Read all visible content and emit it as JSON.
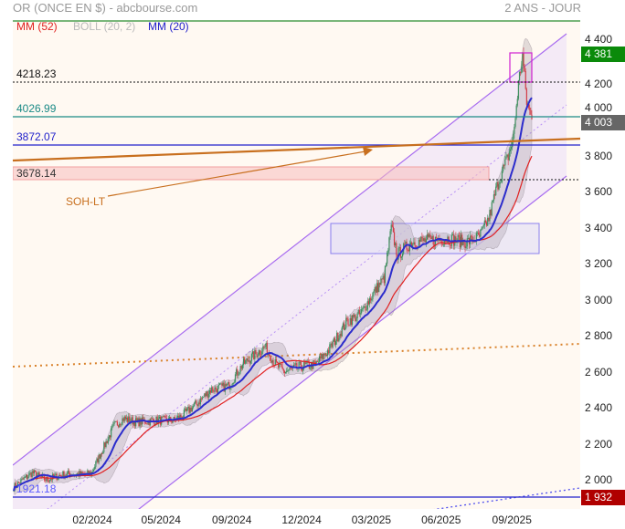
{
  "header": {
    "title": "OR (ONCE EN $) - abcbourse.com",
    "period": "2 ANS - JOUR"
  },
  "legend": [
    {
      "label": "MM (52)",
      "color": "#e02020"
    },
    {
      "label": "BOLL (20, 2)",
      "color": "#bbbbbb"
    },
    {
      "label": "MM (20)",
      "color": "#2222cc"
    }
  ],
  "levels": {
    "l4218": "4218.23",
    "l4027": "4026.99",
    "l3872": "3872.07",
    "l3678": "3678.14",
    "l1921": "1921.18"
  },
  "annotation": {
    "trendline_label": "SOH-LT"
  },
  "badges": {
    "high": "4 381",
    "last": "4 003",
    "low": "1 932"
  },
  "colors": {
    "up": "#3f8f5f",
    "down": "#d23c46",
    "high_badge": "#0a8a0a",
    "last_badge": "#666666",
    "low_badge": "#b00000"
  },
  "chart_data": {
    "type": "candlestick",
    "title": "OR (ONCE EN $)",
    "ylabel": "USD",
    "ylim": [
      1900,
      4450
    ],
    "yticks": [
      "2 000",
      "2 200",
      "2 400",
      "2 600",
      "2 800",
      "3 000",
      "3 200",
      "3 400",
      "3 600",
      "3 800",
      "4 000",
      "4 200",
      "4 400"
    ],
    "ytick_values": [
      2000,
      2200,
      2400,
      2600,
      2800,
      3000,
      3200,
      3400,
      3600,
      3800,
      4000,
      4200,
      4400
    ],
    "xticks": [
      "02/2024",
      "05/2024",
      "09/2024",
      "12/2024",
      "03/2025",
      "06/2025",
      "09/2025"
    ],
    "xtick_day_index": [
      76,
      143,
      212,
      280,
      348,
      416,
      485
    ],
    "total_days": 505,
    "close_keypoints": [
      [
        0,
        1960
      ],
      [
        18,
        2040
      ],
      [
        31,
        2000
      ],
      [
        49,
        2030
      ],
      [
        71,
        2030
      ],
      [
        76,
        2040
      ],
      [
        85,
        2150
      ],
      [
        98,
        2300
      ],
      [
        107,
        2340
      ],
      [
        120,
        2320
      ],
      [
        138,
        2330
      ],
      [
        156,
        2330
      ],
      [
        165,
        2360
      ],
      [
        178,
        2420
      ],
      [
        192,
        2500
      ],
      [
        209,
        2520
      ],
      [
        223,
        2640
      ],
      [
        245,
        2740
      ],
      [
        254,
        2650
      ],
      [
        263,
        2600
      ],
      [
        281,
        2630
      ],
      [
        294,
        2640
      ],
      [
        307,
        2720
      ],
      [
        325,
        2880
      ],
      [
        338,
        2920
      ],
      [
        352,
        3050
      ],
      [
        361,
        3120
      ],
      [
        368,
        3400
      ],
      [
        374,
        3250
      ],
      [
        388,
        3320
      ],
      [
        405,
        3330
      ],
      [
        423,
        3340
      ],
      [
        441,
        3320
      ],
      [
        454,
        3350
      ],
      [
        463,
        3450
      ],
      [
        472,
        3650
      ],
      [
        481,
        3780
      ],
      [
        487,
        3900
      ],
      [
        492,
        4200
      ],
      [
        496,
        4360
      ],
      [
        500,
        4100
      ],
      [
        505,
        4003
      ]
    ],
    "overlays": [
      "MM (52)",
      "BOLL (20, 2)",
      "MM (20)"
    ],
    "last": 4003,
    "high": 4381
  }
}
